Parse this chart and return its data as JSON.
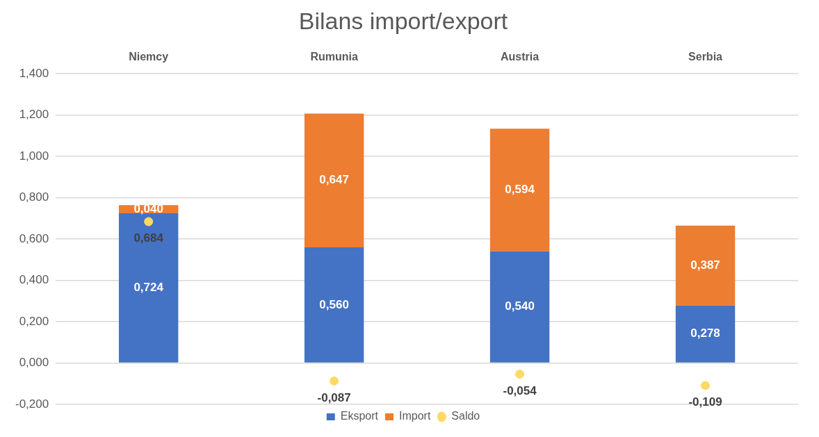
{
  "chart_data": {
    "type": "bar",
    "title": "Bilans import/export",
    "categories": [
      "Niemcy",
      "Rumunia",
      "Austria",
      "Serbia"
    ],
    "stacked": true,
    "ylim": [
      -0.2,
      1.4
    ],
    "yticks": [
      {
        "value": -0.2,
        "label": "-0,200"
      },
      {
        "value": 0,
        "label": "0,000"
      },
      {
        "value": 0.2,
        "label": "0,200"
      },
      {
        "value": 0.4,
        "label": "0,400"
      },
      {
        "value": 0.6,
        "label": "0,600"
      },
      {
        "value": 0.8,
        "label": "0,800"
      },
      {
        "value": 1.0,
        "label": "1,000"
      },
      {
        "value": 1.2,
        "label": "1,200"
      },
      {
        "value": 1.4,
        "label": "1,400"
      }
    ],
    "grid": "y",
    "legend": "bottom",
    "series": [
      {
        "name": "Eksport",
        "color": "#4472c4",
        "values": [
          0.724,
          0.56,
          0.54,
          0.278
        ],
        "value_labels": [
          "0,724",
          "0,560",
          "0,540",
          "0,278"
        ]
      },
      {
        "name": "Import",
        "color": "#ed7d31",
        "values": [
          0.04,
          0.647,
          0.594,
          0.387
        ],
        "value_labels": [
          "0,040",
          "0,647",
          "0,594",
          "0,387"
        ]
      },
      {
        "name": "Saldo",
        "type": "scatter",
        "marker": "circle",
        "color": "#ffd966",
        "x": [
          "Niemcy",
          "Rumunia",
          "Austria",
          "Serbia"
        ],
        "values": [
          0.684,
          -0.087,
          -0.054,
          -0.109
        ],
        "value_labels": [
          "0,684",
          "-0,087",
          "-0,054",
          "-0,109"
        ]
      }
    ]
  }
}
